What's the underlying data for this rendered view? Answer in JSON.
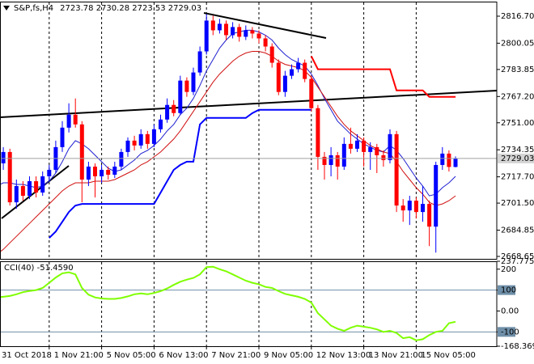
{
  "chart_data": [
    {
      "type": "candlestick",
      "title": "S&P,fs,H4",
      "categories": [
        "31 Oct 2018",
        null,
        null,
        null,
        null,
        null,
        null,
        null,
        "1 Nov 21:00",
        null,
        null,
        null,
        null,
        null,
        null,
        null,
        "5 Nov 05:00",
        null,
        null,
        null,
        null,
        null,
        null,
        null,
        "6 Nov 13:00",
        null,
        null,
        null,
        null,
        null,
        null,
        null,
        "7 Nov 21:00",
        null,
        null,
        null,
        null,
        null,
        null,
        null,
        "9 Nov 05:00",
        null,
        null,
        null,
        null,
        null,
        null,
        null,
        "12 Nov 13:00",
        null,
        null,
        null,
        null,
        null,
        null,
        null,
        "13 Nov 21:00",
        null,
        null,
        null,
        null,
        null,
        null,
        null,
        "15 Nov 05:00",
        null,
        null,
        null,
        null,
        null,
        null
      ],
      "open": [
        2718,
        2726,
        2733,
        2702,
        2712,
        2706,
        2715,
        2708,
        2718,
        2722,
        2736,
        2748,
        2756,
        2750,
        2716,
        2724,
        2718,
        2722,
        2719,
        2724,
        2733,
        2740,
        2737,
        2744,
        2738,
        2747,
        2753,
        2762,
        2757,
        2777,
        2770,
        2782,
        2795,
        2814,
        2808,
        2812,
        2805,
        2810,
        2804,
        2808,
        2806,
        2803,
        2798,
        2788,
        2770,
        2780,
        2784,
        2788,
        2778,
        2760,
        2730,
        2725,
        2731,
        2724,
        2738,
        2735,
        2740,
        2733,
        2736,
        2731,
        2728,
        2744,
        2700,
        2697,
        2703,
        2696,
        2701,
        2687,
        2725,
        2732,
        2723.78
      ],
      "high": [
        2730,
        2736,
        2735,
        2716,
        2715,
        2718,
        2718,
        2721,
        2725,
        2740,
        2752,
        2763,
        2766,
        2752,
        2727,
        2726,
        2725,
        2724,
        2727,
        2735,
        2742,
        2743,
        2747,
        2746,
        2750,
        2756,
        2766,
        2765,
        2780,
        2779,
        2785,
        2798,
        2818,
        2817,
        2815,
        2814,
        2813,
        2812,
        2811,
        2810,
        2808,
        2805,
        2800,
        2790,
        2783,
        2787,
        2791,
        2790,
        2780,
        2762,
        2733,
        2736,
        2733,
        2742,
        2748,
        2744,
        2742,
        2739,
        2738,
        2734,
        2747,
        2746,
        2704,
        2706,
        2705,
        2712,
        2703,
        2727,
        2736,
        2734,
        2730.28
      ],
      "low": [
        2712,
        2722,
        2700,
        2698,
        2703,
        2704,
        2705,
        2706,
        2715,
        2720,
        2733,
        2745,
        2748,
        2702,
        2712,
        2705,
        2714,
        2716,
        2717,
        2722,
        2730,
        2734,
        2735,
        2735,
        2736,
        2745,
        2751,
        2755,
        2756,
        2767,
        2768,
        2780,
        2793,
        2805,
        2806,
        2802,
        2803,
        2801,
        2802,
        2803,
        2800,
        2795,
        2785,
        2768,
        2767,
        2778,
        2782,
        2776,
        2758,
        2722,
        2716,
        2718,
        2716,
        2722,
        2732,
        2733,
        2724,
        2722,
        2720,
        2724,
        2726,
        2696,
        2690,
        2688,
        2692,
        2690,
        2675,
        2671,
        2722,
        2721,
        2723.53
      ],
      "close": [
        2726,
        2733,
        2702,
        2712,
        2706,
        2715,
        2708,
        2718,
        2722,
        2736,
        2748,
        2756,
        2750,
        2716,
        2724,
        2718,
        2722,
        2719,
        2724,
        2733,
        2740,
        2737,
        2744,
        2738,
        2747,
        2753,
        2762,
        2757,
        2777,
        2770,
        2782,
        2795,
        2814,
        2808,
        2812,
        2805,
        2810,
        2804,
        2808,
        2806,
        2803,
        2798,
        2788,
        2770,
        2780,
        2784,
        2788,
        2778,
        2760,
        2730,
        2725,
        2731,
        2724,
        2738,
        2735,
        2740,
        2733,
        2736,
        2731,
        2728,
        2744,
        2700,
        2697,
        2703,
        2696,
        2701,
        2687,
        2725,
        2732,
        2723.78,
        2729.03
      ],
      "up_color": "#0000ff",
      "down_color": "#ff0000",
      "price_line_color": "#a0a0a0",
      "overlays": [
        {
          "color": "#1f1fd0",
          "width": 1,
          "values": [
            2712,
            2714,
            2714,
            2713,
            2713,
            2712,
            2711,
            2712,
            2715,
            2720,
            2727,
            2735,
            2740,
            2738,
            2735,
            2731,
            2727,
            2723,
            2721,
            2722,
            2725,
            2728,
            2732,
            2734,
            2737,
            2741,
            2746,
            2750,
            2756,
            2760,
            2766,
            2774,
            2783,
            2790,
            2797,
            2802,
            2806,
            2807,
            2808,
            2808,
            2807,
            2805,
            2802,
            2797,
            2793,
            2790,
            2788,
            2786,
            2781,
            2774,
            2766,
            2759,
            2752,
            2748,
            2744,
            2741,
            2738,
            2736,
            2734,
            2733,
            2737,
            2734,
            2729,
            2723,
            2717,
            2712,
            2706,
            2707,
            2711,
            2714,
            2718
          ]
        },
        {
          "color": "#d01010",
          "width": 1,
          "values": [
            2670,
            2673,
            2677,
            2681,
            2685,
            2689,
            2693,
            2697,
            2701,
            2705,
            2709,
            2712,
            2714,
            2714,
            2714,
            2715,
            2715,
            2715,
            2716,
            2718,
            2720,
            2722,
            2725,
            2727,
            2730,
            2733,
            2737,
            2741,
            2746,
            2752,
            2758,
            2764,
            2770,
            2776,
            2781,
            2785,
            2789,
            2792,
            2794,
            2795,
            2795,
            2794,
            2792,
            2789,
            2787,
            2786,
            2785,
            2783,
            2779,
            2773,
            2767,
            2761,
            2755,
            2750,
            2746,
            2743,
            2740,
            2737,
            2735,
            2733,
            2732,
            2727,
            2721,
            2716,
            2711,
            2707,
            2702,
            2700,
            2701,
            2703,
            2706
          ]
        },
        {
          "color": "#0000ff",
          "width": 2,
          "values": [
            null,
            null,
            null,
            null,
            null,
            null,
            null,
            null,
            2680,
            2684,
            2690,
            2696,
            2700,
            2701,
            2701,
            2701,
            2701,
            2701,
            2701,
            2701,
            2701,
            2701,
            2701,
            2701,
            2701,
            2708,
            2715,
            2722,
            2725,
            2727,
            2727,
            2750,
            2754,
            2754,
            2754,
            2754,
            2754,
            2754,
            2754,
            2757,
            2759,
            2759,
            2759,
            2759,
            2759,
            2759,
            2759,
            2759,
            2759,
            null,
            null,
            null,
            null,
            null,
            null,
            null,
            null,
            null,
            null,
            null,
            null,
            null,
            null,
            null,
            null,
            null,
            null,
            null,
            null,
            null,
            null
          ]
        },
        {
          "color": "#ff0000",
          "width": 2,
          "values": [
            null,
            null,
            null,
            null,
            null,
            null,
            null,
            null,
            null,
            null,
            null,
            null,
            null,
            null,
            null,
            null,
            null,
            null,
            null,
            null,
            null,
            null,
            null,
            null,
            null,
            null,
            null,
            null,
            null,
            null,
            null,
            null,
            null,
            null,
            null,
            null,
            null,
            null,
            null,
            null,
            null,
            null,
            null,
            null,
            null,
            null,
            null,
            null,
            2792,
            2784,
            2784,
            2784,
            2784,
            2784,
            2784,
            2784,
            2784,
            2784,
            2784,
            2784,
            2784,
            2771,
            2771,
            2771,
            2771,
            2771,
            2767,
            2767,
            2767,
            2767,
            2767
          ]
        }
      ],
      "ylim": [
        2667.15,
        2825.17
      ],
      "yticks": [
        {
          "value": 2816.7,
          "label": "2816.70"
        },
        2800.05,
        2783.85,
        {
          "value": 2767.2,
          "label": "2767.20"
        },
        {
          "value": 2751,
          "label": "2751.00"
        },
        2734.35,
        {
          "value": 2717.7,
          "label": "2717.70"
        },
        {
          "value": 2701.5,
          "label": "2701.50"
        },
        2684.85,
        2668.65
      ],
      "grid": true
    },
    {
      "type": "line",
      "title": "CCI(40)",
      "current": {
        "value": -51.459,
        "label": "-51.4590"
      },
      "color": "#7fff00",
      "values": [
        65,
        68,
        72,
        80,
        90,
        96,
        100,
        110,
        135,
        160,
        180,
        185,
        175,
        110,
        78,
        65,
        60,
        58,
        58,
        62,
        70,
        80,
        84,
        80,
        86,
        95,
        108,
        125,
        140,
        150,
        158,
        175,
        210,
        212,
        200,
        190,
        175,
        160,
        145,
        135,
        128,
        115,
        110,
        95,
        82,
        75,
        68,
        58,
        40,
        -10,
        -40,
        -70,
        -85,
        -95,
        -80,
        -70,
        -75,
        -80,
        -88,
        -100,
        -95,
        -105,
        -130,
        -125,
        -140,
        -135,
        -115,
        -100,
        -95,
        -58,
        -51.459
      ],
      "ylim": [
        -168.3699,
        237.7752
      ],
      "yticks": [
        237.7752,
        200,
        100,
        {
          "value": 0,
          "label": "0.00"
        },
        -100,
        -168.3699
      ],
      "levels": [
        100,
        -100
      ],
      "level_color": "#6f8fa8"
    }
  ]
}
